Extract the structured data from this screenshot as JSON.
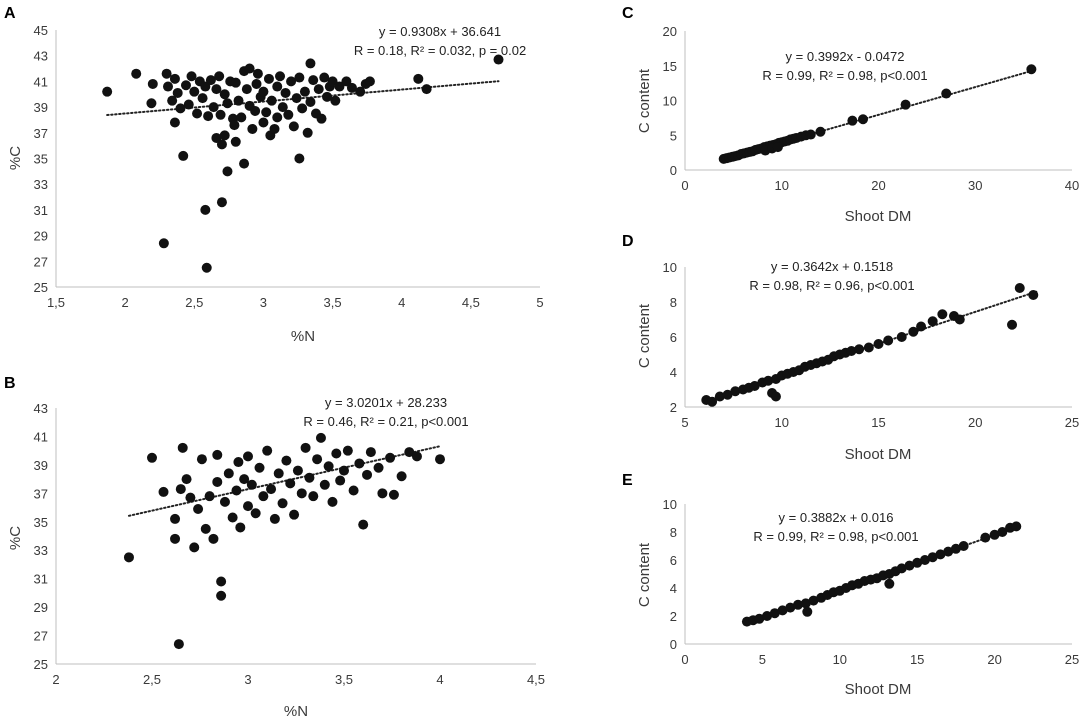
{
  "figure": {
    "marker_color": "#111111",
    "axis_color": "#bfbfbf",
    "trendline_color": "#222222"
  },
  "chart_data": [
    {
      "id": "A",
      "panel_label": "A",
      "type": "scatter",
      "xlabel": "%N",
      "ylabel": "%C",
      "xlim": [
        1.5,
        5
      ],
      "ylim": [
        25,
        45
      ],
      "xticks": [
        1.5,
        2,
        2.5,
        3,
        3.5,
        4,
        4.5,
        5
      ],
      "xtick_labels": [
        "1,5",
        "2",
        "2,5",
        "3",
        "3,5",
        "4",
        "4,5",
        "5"
      ],
      "yticks": [
        25,
        27,
        29,
        31,
        33,
        35,
        37,
        39,
        41,
        43,
        45
      ],
      "ytick_labels": [
        "25",
        "27",
        "29",
        "31",
        "33",
        "35",
        "37",
        "39",
        "41",
        "43",
        "45"
      ],
      "equation": "y = 0.9308x + 36.641",
      "stats": "R = 0.18, R² = 0.032, p = 0.02",
      "trend": {
        "slope": 0.9308,
        "intercept": 36.641,
        "x_range": [
          1.87,
          4.7
        ]
      },
      "points": [
        [
          1.87,
          40.2
        ],
        [
          2.08,
          41.6
        ],
        [
          2.2,
          40.8
        ],
        [
          2.19,
          39.3
        ],
        [
          2.28,
          28.4
        ],
        [
          2.3,
          41.6
        ],
        [
          2.31,
          40.6
        ],
        [
          2.34,
          39.5
        ],
        [
          2.36,
          41.2
        ],
        [
          2.38,
          40.1
        ],
        [
          2.36,
          37.8
        ],
        [
          2.4,
          38.9
        ],
        [
          2.42,
          35.2
        ],
        [
          2.44,
          40.7
        ],
        [
          2.46,
          39.2
        ],
        [
          2.48,
          41.4
        ],
        [
          2.5,
          40.2
        ],
        [
          2.52,
          38.5
        ],
        [
          2.54,
          41.0
        ],
        [
          2.56,
          39.7
        ],
        [
          2.58,
          40.6
        ],
        [
          2.58,
          31.0
        ],
        [
          2.59,
          26.5
        ],
        [
          2.6,
          38.3
        ],
        [
          2.62,
          41.1
        ],
        [
          2.64,
          39.0
        ],
        [
          2.66,
          36.6
        ],
        [
          2.66,
          40.4
        ],
        [
          2.68,
          41.4
        ],
        [
          2.69,
          38.4
        ],
        [
          2.7,
          31.6
        ],
        [
          2.7,
          36.1
        ],
        [
          2.72,
          36.8
        ],
        [
          2.72,
          40.0
        ],
        [
          2.74,
          34.0
        ],
        [
          2.74,
          39.3
        ],
        [
          2.76,
          41.0
        ],
        [
          2.78,
          38.1
        ],
        [
          2.79,
          37.6
        ],
        [
          2.8,
          36.3
        ],
        [
          2.8,
          40.9
        ],
        [
          2.82,
          39.5
        ],
        [
          2.84,
          38.2
        ],
        [
          2.86,
          41.8
        ],
        [
          2.86,
          34.6
        ],
        [
          2.88,
          40.4
        ],
        [
          2.9,
          39.1
        ],
        [
          2.9,
          42.0
        ],
        [
          2.92,
          37.3
        ],
        [
          2.94,
          38.7
        ],
        [
          2.95,
          40.8
        ],
        [
          2.96,
          41.6
        ],
        [
          2.98,
          39.8
        ],
        [
          3.0,
          37.8
        ],
        [
          3.0,
          40.2
        ],
        [
          3.02,
          38.6
        ],
        [
          3.04,
          41.2
        ],
        [
          3.05,
          36.8
        ],
        [
          3.06,
          39.5
        ],
        [
          3.08,
          37.3
        ],
        [
          3.1,
          40.6
        ],
        [
          3.1,
          38.2
        ],
        [
          3.12,
          41.4
        ],
        [
          3.14,
          39.0
        ],
        [
          3.16,
          40.1
        ],
        [
          3.18,
          38.4
        ],
        [
          3.2,
          41.0
        ],
        [
          3.22,
          37.5
        ],
        [
          3.24,
          39.7
        ],
        [
          3.26,
          35.0
        ],
        [
          3.26,
          41.3
        ],
        [
          3.28,
          38.9
        ],
        [
          3.3,
          40.2
        ],
        [
          3.32,
          37.0
        ],
        [
          3.34,
          39.4
        ],
        [
          3.34,
          42.4
        ],
        [
          3.36,
          41.1
        ],
        [
          3.38,
          38.5
        ],
        [
          3.4,
          40.4
        ],
        [
          3.42,
          38.1
        ],
        [
          3.44,
          41.3
        ],
        [
          3.46,
          39.8
        ],
        [
          3.48,
          40.6
        ],
        [
          3.5,
          41.0
        ],
        [
          3.52,
          39.5
        ],
        [
          3.55,
          40.6
        ],
        [
          3.6,
          41.0
        ],
        [
          3.64,
          40.5
        ],
        [
          3.7,
          40.2
        ],
        [
          3.74,
          40.8
        ],
        [
          3.77,
          41.0
        ],
        [
          4.12,
          41.2
        ],
        [
          4.18,
          40.4
        ],
        [
          4.7,
          42.7
        ]
      ]
    },
    {
      "id": "B",
      "panel_label": "B",
      "type": "scatter",
      "xlabel": "%N",
      "ylabel": "%C",
      "xlim": [
        2,
        4.5
      ],
      "ylim": [
        25,
        43
      ],
      "xticks": [
        2,
        2.5,
        3,
        3.5,
        4,
        4.5
      ],
      "xtick_labels": [
        "2",
        "2,5",
        "3",
        "3,5",
        "4",
        "4,5"
      ],
      "yticks": [
        25,
        27,
        29,
        31,
        33,
        35,
        37,
        39,
        41,
        43
      ],
      "ytick_labels": [
        "25",
        "27",
        "29",
        "31",
        "33",
        "35",
        "37",
        "39",
        "41",
        "43"
      ],
      "equation": "y = 3.0201x + 28.233",
      "stats": "R = 0.46, R² = 0.21, p<0.001",
      "trend": {
        "slope": 3.0201,
        "intercept": 28.233,
        "x_range": [
          2.38,
          4.0
        ]
      },
      "points": [
        [
          2.38,
          32.5
        ],
        [
          2.5,
          39.5
        ],
        [
          2.56,
          37.1
        ],
        [
          2.62,
          35.2
        ],
        [
          2.62,
          33.8
        ],
        [
          2.64,
          26.4
        ],
        [
          2.65,
          37.3
        ],
        [
          2.66,
          40.2
        ],
        [
          2.68,
          38.0
        ],
        [
          2.7,
          36.7
        ],
        [
          2.72,
          33.2
        ],
        [
          2.74,
          35.9
        ],
        [
          2.76,
          39.4
        ],
        [
          2.78,
          34.5
        ],
        [
          2.8,
          36.8
        ],
        [
          2.82,
          33.8
        ],
        [
          2.84,
          37.8
        ],
        [
          2.84,
          39.7
        ],
        [
          2.86,
          29.8
        ],
        [
          2.86,
          30.8
        ],
        [
          2.88,
          36.4
        ],
        [
          2.9,
          38.4
        ],
        [
          2.92,
          35.3
        ],
        [
          2.94,
          37.2
        ],
        [
          2.95,
          39.2
        ],
        [
          2.96,
          34.6
        ],
        [
          2.98,
          38.0
        ],
        [
          3.0,
          36.1
        ],
        [
          3.0,
          39.6
        ],
        [
          3.02,
          37.6
        ],
        [
          3.04,
          35.6
        ],
        [
          3.06,
          38.8
        ],
        [
          3.08,
          36.8
        ],
        [
          3.1,
          40.0
        ],
        [
          3.12,
          37.3
        ],
        [
          3.14,
          35.2
        ],
        [
          3.16,
          38.4
        ],
        [
          3.18,
          36.3
        ],
        [
          3.2,
          39.3
        ],
        [
          3.22,
          37.7
        ],
        [
          3.24,
          35.5
        ],
        [
          3.26,
          38.6
        ],
        [
          3.28,
          37.0
        ],
        [
          3.3,
          40.2
        ],
        [
          3.32,
          38.1
        ],
        [
          3.34,
          36.8
        ],
        [
          3.36,
          39.4
        ],
        [
          3.38,
          40.9
        ],
        [
          3.4,
          37.6
        ],
        [
          3.42,
          38.9
        ],
        [
          3.44,
          36.4
        ],
        [
          3.46,
          39.8
        ],
        [
          3.48,
          37.9
        ],
        [
          3.5,
          38.6
        ],
        [
          3.52,
          40.0
        ],
        [
          3.55,
          37.2
        ],
        [
          3.58,
          39.1
        ],
        [
          3.6,
          34.8
        ],
        [
          3.62,
          38.3
        ],
        [
          3.64,
          39.9
        ],
        [
          3.68,
          38.8
        ],
        [
          3.7,
          37.0
        ],
        [
          3.74,
          39.5
        ],
        [
          3.76,
          36.9
        ],
        [
          3.8,
          38.2
        ],
        [
          3.84,
          39.9
        ],
        [
          3.88,
          39.6
        ],
        [
          4.0,
          39.4
        ]
      ]
    },
    {
      "id": "C",
      "panel_label": "C",
      "type": "scatter",
      "xlabel": "Shoot DM",
      "ylabel": "C content",
      "xlim": [
        0,
        40
      ],
      "ylim": [
        0,
        20
      ],
      "xticks": [
        0,
        10,
        20,
        30,
        40
      ],
      "xtick_labels": [
        "0",
        "10",
        "20",
        "30",
        "40"
      ],
      "yticks": [
        0,
        5,
        10,
        15,
        20
      ],
      "ytick_labels": [
        "0",
        "5",
        "10",
        "15",
        "20"
      ],
      "equation": "y = 0.3992x - 0.0472",
      "stats": "R = 0.99, R² = 0.98, p<0.001",
      "trend": {
        "slope": 0.3992,
        "intercept": -0.0472,
        "x_range": [
          4.0,
          36.0
        ]
      },
      "points": [
        [
          4.0,
          1.6
        ],
        [
          4.3,
          1.7
        ],
        [
          4.6,
          1.8
        ],
        [
          4.9,
          1.9
        ],
        [
          5.2,
          2.0
        ],
        [
          5.5,
          2.1
        ],
        [
          5.8,
          2.3
        ],
        [
          6.1,
          2.4
        ],
        [
          6.4,
          2.5
        ],
        [
          6.7,
          2.6
        ],
        [
          7.0,
          2.7
        ],
        [
          7.3,
          2.9
        ],
        [
          7.6,
          3.0
        ],
        [
          7.9,
          3.1
        ],
        [
          8.2,
          3.3
        ],
        [
          8.5,
          3.4
        ],
        [
          8.8,
          3.5
        ],
        [
          9.1,
          3.6
        ],
        [
          9.4,
          3.7
        ],
        [
          9.7,
          3.9
        ],
        [
          10.0,
          4.0
        ],
        [
          10.3,
          4.1
        ],
        [
          10.6,
          4.2
        ],
        [
          10.9,
          4.4
        ],
        [
          11.2,
          4.5
        ],
        [
          11.5,
          4.6
        ],
        [
          12.0,
          4.8
        ],
        [
          12.5,
          5.0
        ],
        [
          13.0,
          5.1
        ],
        [
          14.0,
          5.5
        ],
        [
          8.3,
          2.8
        ],
        [
          9.0,
          3.1
        ],
        [
          9.6,
          3.3
        ],
        [
          17.3,
          7.1
        ],
        [
          18.4,
          7.3
        ],
        [
          22.8,
          9.4
        ],
        [
          27.0,
          11.0
        ],
        [
          35.8,
          14.5
        ]
      ]
    },
    {
      "id": "D",
      "panel_label": "D",
      "type": "scatter",
      "xlabel": "Shoot DM",
      "ylabel": "C content",
      "xlim": [
        5,
        25
      ],
      "ylim": [
        2,
        10
      ],
      "xticks": [
        5,
        10,
        15,
        20,
        25
      ],
      "xtick_labels": [
        "5",
        "10",
        "15",
        "20",
        "25"
      ],
      "yticks": [
        2,
        4,
        6,
        8,
        10
      ],
      "ytick_labels": [
        "2",
        "4",
        "6",
        "8",
        "10"
      ],
      "equation": "y = 0.3642x + 0.1518",
      "stats": "R = 0.98, R² = 0.96, p<0.001",
      "trend": {
        "slope": 0.3642,
        "intercept": 0.1518,
        "x_range": [
          6.0,
          23.2
        ]
      },
      "points": [
        [
          6.1,
          2.4
        ],
        [
          6.4,
          2.3
        ],
        [
          6.8,
          2.6
        ],
        [
          7.2,
          2.7
        ],
        [
          7.6,
          2.9
        ],
        [
          8.0,
          3.0
        ],
        [
          8.3,
          3.1
        ],
        [
          8.6,
          3.2
        ],
        [
          9.0,
          3.4
        ],
        [
          9.3,
          3.5
        ],
        [
          9.5,
          2.8
        ],
        [
          9.7,
          3.6
        ],
        [
          9.7,
          2.6
        ],
        [
          10.0,
          3.8
        ],
        [
          10.3,
          3.9
        ],
        [
          10.6,
          4.0
        ],
        [
          10.9,
          4.1
        ],
        [
          11.2,
          4.3
        ],
        [
          11.5,
          4.4
        ],
        [
          11.8,
          4.5
        ],
        [
          12.1,
          4.6
        ],
        [
          12.4,
          4.7
        ],
        [
          12.7,
          4.9
        ],
        [
          13.0,
          5.0
        ],
        [
          13.3,
          5.1
        ],
        [
          13.6,
          5.2
        ],
        [
          14.0,
          5.3
        ],
        [
          14.5,
          5.4
        ],
        [
          15.0,
          5.6
        ],
        [
          15.5,
          5.8
        ],
        [
          16.2,
          6.0
        ],
        [
          16.8,
          6.3
        ],
        [
          17.2,
          6.6
        ],
        [
          17.8,
          6.9
        ],
        [
          18.3,
          7.3
        ],
        [
          18.9,
          7.2
        ],
        [
          19.2,
          7.0
        ],
        [
          21.9,
          6.7
        ],
        [
          22.3,
          8.8
        ],
        [
          23.0,
          8.4
        ]
      ]
    },
    {
      "id": "E",
      "panel_label": "E",
      "type": "scatter",
      "xlabel": "Shoot DM",
      "ylabel": "C content",
      "xlim": [
        0,
        25
      ],
      "ylim": [
        0,
        10
      ],
      "xticks": [
        0,
        5,
        10,
        15,
        20,
        25
      ],
      "xtick_labels": [
        "0",
        "5",
        "10",
        "15",
        "20",
        "25"
      ],
      "yticks": [
        0,
        2,
        4,
        6,
        8,
        10
      ],
      "ytick_labels": [
        "0",
        "2",
        "4",
        "6",
        "8",
        "10"
      ],
      "equation": "y = 0.3882x + 0.016",
      "stats": "R = 0.99, R² = 0.98, p<0.001",
      "trend": {
        "slope": 0.3882,
        "intercept": 0.016,
        "x_range": [
          4.0,
          21.5
        ]
      },
      "points": [
        [
          4.0,
          1.6
        ],
        [
          4.4,
          1.7
        ],
        [
          4.8,
          1.8
        ],
        [
          5.3,
          2.0
        ],
        [
          5.8,
          2.2
        ],
        [
          6.3,
          2.4
        ],
        [
          6.8,
          2.6
        ],
        [
          7.3,
          2.8
        ],
        [
          7.8,
          2.9
        ],
        [
          7.9,
          2.3
        ],
        [
          8.3,
          3.1
        ],
        [
          8.8,
          3.3
        ],
        [
          9.2,
          3.5
        ],
        [
          9.6,
          3.7
        ],
        [
          10.0,
          3.8
        ],
        [
          10.4,
          4.0
        ],
        [
          10.8,
          4.2
        ],
        [
          11.2,
          4.3
        ],
        [
          11.6,
          4.5
        ],
        [
          12.0,
          4.6
        ],
        [
          12.4,
          4.7
        ],
        [
          12.8,
          4.9
        ],
        [
          13.2,
          5.0
        ],
        [
          13.2,
          4.3
        ],
        [
          13.6,
          5.2
        ],
        [
          14.0,
          5.4
        ],
        [
          14.5,
          5.6
        ],
        [
          15.0,
          5.8
        ],
        [
          15.5,
          6.0
        ],
        [
          16.0,
          6.2
        ],
        [
          16.5,
          6.4
        ],
        [
          17.0,
          6.6
        ],
        [
          17.5,
          6.8
        ],
        [
          18.0,
          7.0
        ],
        [
          19.4,
          7.6
        ],
        [
          20.0,
          7.8
        ],
        [
          20.5,
          8.0
        ],
        [
          21.0,
          8.3
        ],
        [
          21.4,
          8.4
        ]
      ]
    }
  ]
}
